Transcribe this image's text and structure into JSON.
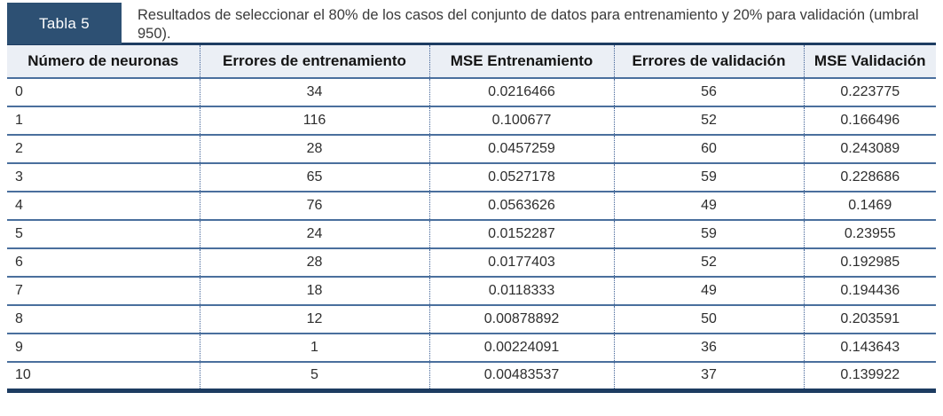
{
  "table": {
    "label": "Tabla 5",
    "caption": "Resultados de seleccionar el 80% de los casos del conjunto de datos para entrenamiento y 20% para validación (umbral 950).",
    "columns": [
      "Número de neuronas",
      "Errores de entrenamiento",
      "MSE Entrenamiento",
      "Errores de validación",
      "MSE Validación"
    ],
    "rows": [
      [
        "0",
        "34",
        "0.0216466",
        "56",
        "0.223775"
      ],
      [
        "1",
        "116",
        "0.100677",
        "52",
        "0.166496"
      ],
      [
        "2",
        "28",
        "0.0457259",
        "60",
        "0.243089"
      ],
      [
        "3",
        "65",
        "0.0527178",
        "59",
        "0.228686"
      ],
      [
        "4",
        "76",
        "0.0563626",
        "49",
        "0.1469"
      ],
      [
        "5",
        "24",
        "0.0152287",
        "59",
        "0.23955"
      ],
      [
        "6",
        "28",
        "0.0177403",
        "52",
        "0.192985"
      ],
      [
        "7",
        "18",
        "0.0118333",
        "49",
        "0.194436"
      ],
      [
        "8",
        "12",
        "0.00878892",
        "50",
        "0.203591"
      ],
      [
        "9",
        "1",
        "0.00224091",
        "36",
        "0.143643"
      ],
      [
        "10",
        "5",
        "0.00483537",
        "37",
        "0.139922"
      ]
    ]
  },
  "colors": {
    "tab_navy": "#2d5073",
    "rule_navy": "#1d3c61",
    "row_line": "#4a6f9d",
    "divider_blue": "#3d5f94",
    "header_bg": "#ebeff5"
  }
}
